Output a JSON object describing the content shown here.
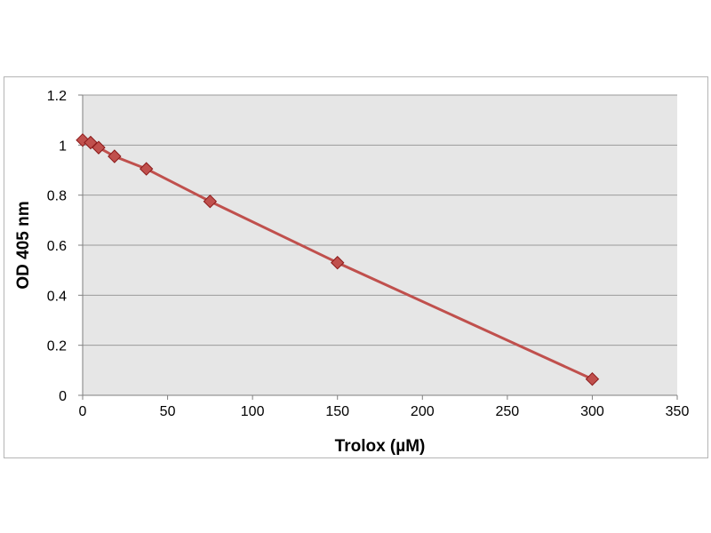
{
  "chart_data": {
    "type": "line",
    "title": "",
    "xlabel": "Trolox (µM)",
    "ylabel": "OD 405 nm",
    "xlim": [
      0,
      350
    ],
    "ylim": [
      0,
      1.2
    ],
    "x_ticks": [
      "0",
      "50",
      "100",
      "150",
      "200",
      "250",
      "300",
      "350"
    ],
    "y_ticks": [
      "0",
      "0.2",
      "0.4",
      "0.6",
      "0.8",
      "1",
      "1.2"
    ],
    "grid": "horizontal",
    "legend": "none",
    "series": [
      {
        "color": "#c0504d",
        "marker": "diamond",
        "x": [
          0,
          4.7,
          9.4,
          18.75,
          37.5,
          75,
          150,
          300
        ],
        "y": [
          1.02,
          1.01,
          0.99,
          0.955,
          0.905,
          0.775,
          0.53,
          0.065
        ]
      }
    ],
    "colors": {
      "plot_background": "#e6e6e6",
      "gridline": "#9a9a9a",
      "line": "#c0504d",
      "marker_edge": "#8b1a1a"
    }
  }
}
